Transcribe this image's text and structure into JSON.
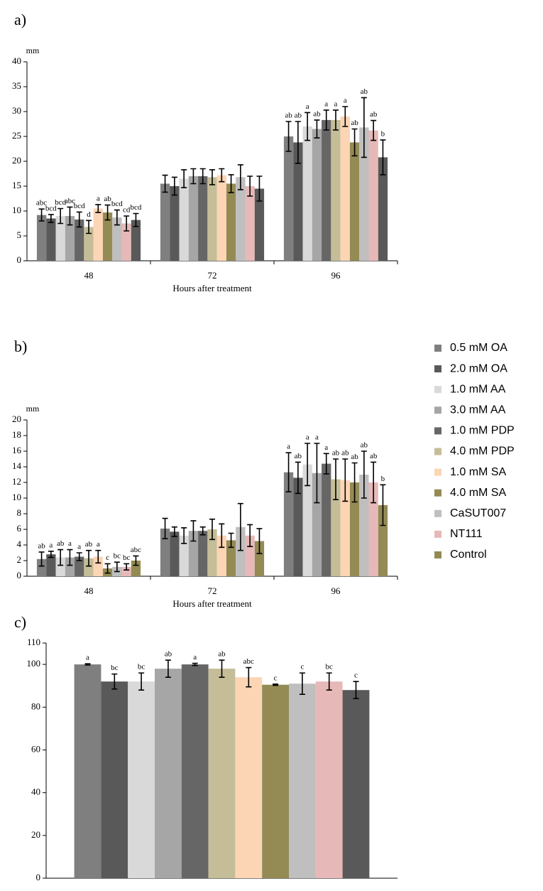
{
  "chart_data": [
    {
      "type": "bar",
      "panel_label": "a)",
      "y_unit": "mm",
      "x_label": "Hours after treatment",
      "categories": [
        "48",
        "72",
        "96"
      ],
      "ylim": [
        0,
        40
      ],
      "yticks": [
        0,
        5,
        10,
        15,
        20,
        25,
        30,
        35,
        40
      ],
      "series": [
        {
          "color": "#7f7f7f",
          "values": [
            9.2,
            15.5,
            25.0
          ],
          "errors": [
            1.2,
            1.7,
            3.0
          ],
          "annotations": [
            "abc",
            null,
            "ab"
          ]
        },
        {
          "color": "#595959",
          "values": [
            8.5,
            15.0,
            23.8
          ],
          "errors": [
            0.8,
            1.8,
            4.2
          ],
          "annotations": [
            "bcd",
            null,
            "ab"
          ]
        },
        {
          "color": "#d9d9d9",
          "values": [
            9.0,
            16.5,
            27.0
          ],
          "errors": [
            1.5,
            1.8,
            2.8
          ],
          "annotations": [
            "bcd",
            null,
            "a"
          ]
        },
        {
          "color": "#a6a6a6",
          "values": [
            9.0,
            17.0,
            26.5
          ],
          "errors": [
            1.8,
            1.5,
            1.8
          ],
          "annotations": [
            "abc",
            null,
            "ab"
          ]
        },
        {
          "color": "#666666",
          "values": [
            8.3,
            17.0,
            28.3
          ],
          "errors": [
            1.5,
            1.5,
            2.0
          ],
          "annotations": [
            "bcd",
            null,
            "a"
          ]
        },
        {
          "color": "#c4bd97",
          "values": [
            6.8,
            16.8,
            28.3
          ],
          "errors": [
            1.3,
            1.5,
            2.0
          ],
          "annotations": [
            "d",
            null,
            "a"
          ]
        },
        {
          "color": "#fcd5b5",
          "values": [
            10.5,
            17.2,
            29.0
          ],
          "errors": [
            0.8,
            1.3,
            2.0
          ],
          "annotations": [
            "a",
            null,
            "a"
          ]
        },
        {
          "color": "#948a54",
          "values": [
            9.7,
            15.5,
            23.8
          ],
          "errors": [
            1.5,
            1.8,
            2.7
          ],
          "annotations": [
            "ab",
            null,
            "ab"
          ]
        },
        {
          "color": "#bfbfbf",
          "values": [
            8.7,
            16.8,
            26.8
          ],
          "errors": [
            1.5,
            2.5,
            6.0
          ],
          "annotations": [
            "bcd",
            null,
            "ab"
          ]
        },
        {
          "color": "#e6b9b8",
          "values": [
            7.5,
            15.0,
            26.2
          ],
          "errors": [
            1.5,
            2.0,
            2.0
          ],
          "annotations": [
            "cd",
            null,
            "ab"
          ]
        },
        {
          "color": "#595959",
          "values": [
            8.2,
            14.5,
            20.8
          ],
          "errors": [
            1.3,
            2.5,
            3.5
          ],
          "annotations": [
            "bcd",
            null,
            "b"
          ]
        }
      ]
    },
    {
      "type": "bar",
      "panel_label": "b)",
      "y_unit": "mm",
      "x_label": "Hours after treatment",
      "legend": "right",
      "categories": [
        "48",
        "72",
        "96"
      ],
      "ylim": [
        0,
        20
      ],
      "yticks": [
        0,
        2,
        4,
        6,
        8,
        10,
        12,
        14,
        16,
        18,
        20
      ],
      "series": [
        {
          "name": "0.5 mM OA",
          "color": "#7f7f7f",
          "values": [
            2.2,
            6.1,
            13.3
          ],
          "errors": [
            0.9,
            1.3,
            2.5
          ],
          "annotations": [
            "ab",
            null,
            "a"
          ]
        },
        {
          "name": "2.0 mM OA",
          "color": "#595959",
          "values": [
            2.8,
            5.7,
            12.6
          ],
          "errors": [
            0.4,
            0.6,
            2.0
          ],
          "annotations": [
            "a",
            null,
            "ab"
          ]
        },
        {
          "name": "1.0 mM AA",
          "color": "#d9d9d9",
          "values": [
            2.4,
            5.2,
            14.3
          ],
          "errors": [
            1.0,
            1.0,
            2.7
          ],
          "annotations": [
            "ab",
            null,
            "a"
          ]
        },
        {
          "name": "3.0 mM AA",
          "color": "#a6a6a6",
          "values": [
            2.4,
            5.8,
            13.2
          ],
          "errors": [
            1.0,
            1.3,
            3.8
          ],
          "annotations": [
            "a",
            null,
            "a"
          ]
        },
        {
          "name": "1.0 mM PDP",
          "color": "#666666",
          "values": [
            2.5,
            5.8,
            14.4
          ],
          "errors": [
            0.5,
            0.5,
            1.3
          ],
          "annotations": [
            "a",
            null,
            "a"
          ]
        },
        {
          "name": "4.0 mM PDP",
          "color": "#c4bd97",
          "values": [
            2.3,
            6.0,
            12.4
          ],
          "errors": [
            1.0,
            1.3,
            2.6
          ],
          "annotations": [
            "ab",
            null,
            "ab"
          ]
        },
        {
          "name": "1.0 mM SA",
          "color": "#fcd5b5",
          "values": [
            2.5,
            5.2,
            12.3
          ],
          "errors": [
            0.8,
            1.5,
            2.7
          ],
          "annotations": [
            "a",
            null,
            "ab"
          ]
        },
        {
          "name": "4.0 mM SA",
          "color": "#948a54",
          "values": [
            1.0,
            4.6,
            12.0
          ],
          "errors": [
            0.6,
            0.9,
            2.5
          ],
          "annotations": [
            "c",
            null,
            "ab"
          ]
        },
        {
          "name": "CaSUT007",
          "color": "#bfbfbf",
          "values": [
            1.2,
            6.3,
            13.0
          ],
          "errors": [
            0.6,
            3.0,
            3.0
          ],
          "annotations": [
            "bc",
            null,
            "ab"
          ]
        },
        {
          "name": "NT111",
          "color": "#e6b9b8",
          "values": [
            1.2,
            5.2,
            12.0
          ],
          "errors": [
            0.4,
            1.4,
            2.6
          ],
          "annotations": [
            "bc",
            null,
            "ab"
          ]
        },
        {
          "name": "Control",
          "color": "#948a54",
          "values": [
            2.0,
            4.5,
            9.1
          ],
          "errors": [
            0.6,
            1.6,
            2.6
          ],
          "annotations": [
            "abc",
            null,
            "b"
          ]
        }
      ]
    },
    {
      "type": "bar",
      "panel_label": "c)",
      "categories": [
        null
      ],
      "ylim": [
        0,
        110
      ],
      "yticks": [
        0,
        20,
        40,
        60,
        80,
        100,
        110
      ],
      "series": [
        {
          "color": "#7f7f7f",
          "values": [
            100
          ],
          "errors": [
            0.3
          ],
          "annotations": [
            "a"
          ]
        },
        {
          "color": "#595959",
          "values": [
            92
          ],
          "errors": [
            3.5
          ],
          "annotations": [
            "bc"
          ]
        },
        {
          "color": "#d9d9d9",
          "values": [
            92
          ],
          "errors": [
            4
          ],
          "annotations": [
            "bc"
          ]
        },
        {
          "color": "#a6a6a6",
          "values": [
            98
          ],
          "errors": [
            4
          ],
          "annotations": [
            "ab"
          ]
        },
        {
          "color": "#666666",
          "values": [
            100
          ],
          "errors": [
            0.5
          ],
          "annotations": [
            "a"
          ]
        },
        {
          "color": "#c4bd97",
          "values": [
            98
          ],
          "errors": [
            4
          ],
          "annotations": [
            "ab"
          ]
        },
        {
          "color": "#fcd5b5",
          "values": [
            94
          ],
          "errors": [
            4.5
          ],
          "annotations": [
            "abc"
          ]
        },
        {
          "color": "#948a54",
          "values": [
            90.5
          ],
          "errors": [
            0.3
          ],
          "annotations": [
            "c"
          ]
        },
        {
          "color": "#bfbfbf",
          "values": [
            91
          ],
          "errors": [
            5
          ],
          "annotations": [
            "c"
          ]
        },
        {
          "color": "#e6b9b8",
          "values": [
            92
          ],
          "errors": [
            4
          ],
          "annotations": [
            "bc"
          ]
        },
        {
          "color": "#595959",
          "values": [
            88
          ],
          "errors": [
            4
          ],
          "annotations": [
            "c"
          ]
        }
      ]
    }
  ]
}
